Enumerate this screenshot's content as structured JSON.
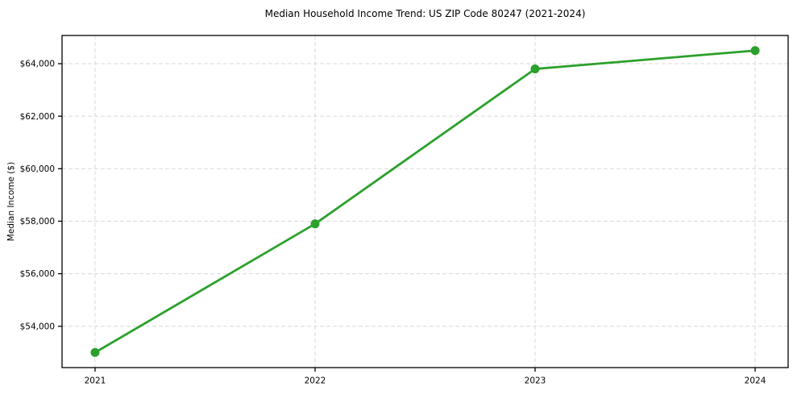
{
  "chart_data": {
    "type": "line",
    "title": "Median Household Income Trend: US ZIP Code 80247 (2021-2024)",
    "xlabel": "",
    "ylabel": "Median Income ($)",
    "x": [
      2021,
      2022,
      2023,
      2024
    ],
    "x_tick_labels": [
      "2021",
      "2022",
      "2023",
      "2024"
    ],
    "series": [
      {
        "name": "Median Household Income",
        "values": [
          53000,
          57900,
          63800,
          64500
        ]
      }
    ],
    "y_ticks": [
      54000,
      56000,
      58000,
      60000,
      62000,
      64000
    ],
    "y_tick_labels": [
      "$54,000",
      "$56,000",
      "$58,000",
      "$60,000",
      "$62,000",
      "$64,000"
    ],
    "xlim": [
      2020.85,
      2024.15
    ],
    "ylim": [
      52425,
      65075
    ],
    "grid": true,
    "legend": "none",
    "colors": {
      "line": "#2ca02c",
      "marker": "#2ca02c",
      "grid": "#d9d9d9",
      "spine": "#000000",
      "background": "#ffffff",
      "text": "#000000"
    }
  }
}
